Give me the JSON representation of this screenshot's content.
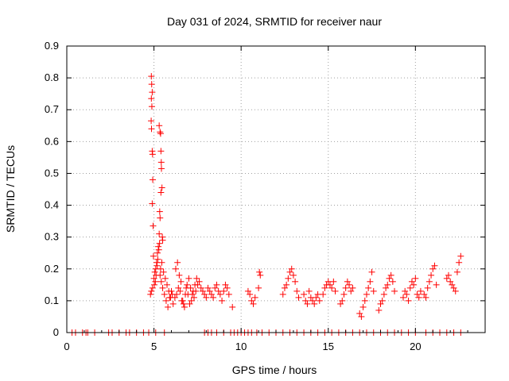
{
  "chart_data": {
    "type": "scatter",
    "title": "Day 031 of 2024, SRMTID for receiver naur",
    "xlabel": "GPS time / hours",
    "ylabel": "SRMTID / TECUs",
    "xlim": [
      0,
      24
    ],
    "ylim": [
      0,
      0.9
    ],
    "xticks": [
      "0",
      "5",
      "10",
      "15",
      "20"
    ],
    "yticks": [
      "0",
      "0.1",
      "0.2",
      "0.3",
      "0.4",
      "0.5",
      "0.6",
      "0.7",
      "0.8",
      "0.9"
    ],
    "grid": true,
    "marker": "+",
    "color": "#ff0000",
    "series": [
      {
        "name": "SRMTID",
        "x": [
          4.85,
          4.87,
          4.9,
          4.85,
          4.88,
          4.84,
          4.86,
          4.9,
          4.92,
          4.93,
          4.9,
          4.95,
          4.97,
          5.3,
          5.35,
          5.38,
          5.4,
          5.42,
          5.43,
          5.46,
          5.33,
          5.35,
          5.4,
          5.48,
          5.5,
          4.8,
          4.85,
          4.92,
          5.0,
          5.05,
          5.1,
          5.15,
          5.2,
          5.25,
          5.3,
          5.35,
          5.42,
          5.5,
          5.6,
          5.7,
          5.8,
          5.9,
          6.0,
          6.1,
          5.02,
          5.08,
          5.12,
          5.18,
          5.22,
          5.28,
          5.32,
          5.38,
          5.45,
          5.55,
          5.65,
          5.75,
          5.85,
          5.95,
          6.05,
          6.2,
          6.3,
          6.4,
          6.5,
          6.6,
          6.7,
          6.8,
          6.9,
          7.0,
          7.1,
          7.2,
          7.3,
          7.4,
          7.5,
          7.6,
          7.7,
          7.8,
          7.9,
          8.0,
          6.25,
          6.35,
          6.45,
          6.55,
          6.65,
          6.75,
          6.85,
          6.95,
          7.05,
          7.15,
          7.25,
          7.35,
          7.45,
          8.1,
          8.2,
          8.3,
          8.4,
          8.5,
          8.6,
          8.7,
          8.8,
          8.9,
          9.0,
          9.1,
          9.2,
          9.3,
          9.5,
          10.4,
          10.5,
          10.6,
          10.7,
          10.8,
          11.0,
          11.05,
          11.1,
          12.4,
          12.5,
          12.6,
          12.7,
          12.8,
          12.9,
          13.0,
          13.1,
          13.2,
          13.3,
          13.6,
          13.7,
          13.8,
          13.9,
          14.0,
          14.1,
          14.2,
          14.3,
          14.4,
          14.5,
          14.7,
          14.8,
          14.9,
          15.0,
          15.1,
          15.2,
          15.3,
          15.4,
          15.7,
          15.8,
          15.9,
          16.0,
          16.1,
          16.2,
          16.3,
          16.4,
          16.8,
          16.9,
          17.0,
          17.1,
          17.2,
          17.3,
          17.4,
          17.5,
          17.6,
          17.9,
          18.0,
          18.1,
          18.2,
          18.3,
          18.4,
          18.5,
          18.6,
          18.7,
          18.8,
          19.3,
          19.4,
          19.5,
          19.6,
          19.7,
          19.8,
          19.9,
          20.0,
          20.1,
          20.2,
          20.3,
          20.5,
          20.6,
          20.7,
          20.8,
          20.9,
          21.0,
          21.1,
          21.2,
          21.8,
          21.9,
          22.0,
          22.1,
          22.2,
          22.3,
          22.4,
          22.5,
          22.6,
          0.3,
          0.5,
          0.9,
          1.1,
          1.2,
          1.6,
          2.4,
          2.6,
          3.0,
          3.4,
          3.6,
          4.0,
          4.4,
          4.7,
          5.1,
          5.6,
          7.9,
          8.1,
          8.3,
          8.6,
          9.0,
          9.4,
          9.6,
          9.8,
          10.0,
          10.2,
          10.4,
          10.6,
          10.9,
          11.2,
          11.6,
          12.0,
          12.4,
          12.8,
          13.2,
          13.6,
          14.0,
          14.4,
          14.8,
          15.2,
          15.6,
          16.0,
          16.4,
          16.8,
          17.2,
          17.6,
          18.0,
          18.4,
          18.8,
          19.2,
          19.6,
          20.0,
          20.6,
          21.0,
          21.4,
          21.8,
          22.2,
          22.6
        ],
        "y": [
          0.805,
          0.78,
          0.755,
          0.735,
          0.71,
          0.665,
          0.64,
          0.57,
          0.56,
          0.48,
          0.405,
          0.335,
          0.24,
          0.65,
          0.63,
          0.625,
          0.57,
          0.535,
          0.515,
          0.455,
          0.38,
          0.36,
          0.44,
          0.3,
          0.29,
          0.12,
          0.13,
          0.14,
          0.17,
          0.19,
          0.2,
          0.22,
          0.25,
          0.27,
          0.31,
          0.18,
          0.16,
          0.14,
          0.12,
          0.1,
          0.08,
          0.11,
          0.13,
          0.09,
          0.15,
          0.16,
          0.18,
          0.21,
          0.23,
          0.26,
          0.28,
          0.2,
          0.22,
          0.19,
          0.17,
          0.15,
          0.13,
          0.11,
          0.12,
          0.11,
          0.12,
          0.14,
          0.13,
          0.1,
          0.09,
          0.12,
          0.15,
          0.17,
          0.14,
          0.12,
          0.11,
          0.13,
          0.15,
          0.16,
          0.14,
          0.13,
          0.12,
          0.11,
          0.2,
          0.22,
          0.18,
          0.16,
          0.1,
          0.08,
          0.14,
          0.12,
          0.09,
          0.1,
          0.13,
          0.15,
          0.17,
          0.14,
          0.13,
          0.12,
          0.11,
          0.14,
          0.15,
          0.13,
          0.12,
          0.1,
          0.13,
          0.15,
          0.14,
          0.12,
          0.08,
          0.13,
          0.12,
          0.1,
          0.09,
          0.11,
          0.14,
          0.19,
          0.18,
          0.12,
          0.14,
          0.15,
          0.17,
          0.19,
          0.2,
          0.18,
          0.16,
          0.13,
          0.11,
          0.12,
          0.1,
          0.09,
          0.13,
          0.11,
          0.1,
          0.09,
          0.11,
          0.12,
          0.1,
          0.12,
          0.14,
          0.15,
          0.16,
          0.15,
          0.14,
          0.16,
          0.13,
          0.09,
          0.1,
          0.12,
          0.14,
          0.16,
          0.15,
          0.13,
          0.14,
          0.06,
          0.05,
          0.08,
          0.1,
          0.12,
          0.14,
          0.16,
          0.19,
          0.13,
          0.07,
          0.09,
          0.1,
          0.12,
          0.14,
          0.15,
          0.17,
          0.18,
          0.16,
          0.13,
          0.11,
          0.13,
          0.12,
          0.1,
          0.14,
          0.16,
          0.15,
          0.17,
          0.12,
          0.11,
          0.13,
          0.12,
          0.11,
          0.14,
          0.16,
          0.18,
          0.2,
          0.21,
          0.15,
          0.17,
          0.18,
          0.16,
          0.15,
          0.14,
          0.13,
          0.19,
          0.22,
          0.24,
          0,
          0,
          0,
          0,
          0,
          0,
          0,
          0,
          0,
          0,
          0,
          0,
          0,
          0,
          0,
          0,
          0,
          0,
          0,
          0,
          0,
          0,
          0,
          0,
          0,
          0,
          0,
          0,
          0,
          0,
          0,
          0,
          0,
          0,
          0,
          0,
          0,
          0,
          0,
          0,
          0,
          0,
          0,
          0,
          0,
          0,
          0,
          0,
          0,
          0,
          0,
          0,
          0,
          0,
          0,
          0,
          0,
          0
        ]
      }
    ]
  }
}
